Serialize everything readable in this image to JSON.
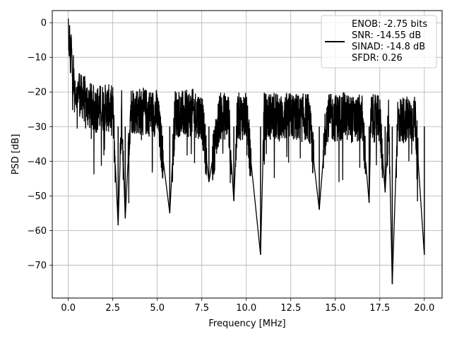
{
  "chart_data": {
    "type": "line",
    "title": "",
    "xlabel": "Frequency [MHz]",
    "ylabel": "PSD [dB]",
    "xlim": [
      -0.9,
      21.0
    ],
    "ylim": [
      -79.5,
      3.5
    ],
    "xticks": [
      0.0,
      2.5,
      5.0,
      7.5,
      10.0,
      12.5,
      15.0,
      17.5,
      20.0
    ],
    "xtick_labels": [
      "0.0",
      "2.5",
      "5.0",
      "7.5",
      "10.0",
      "12.5",
      "15.0",
      "17.5",
      "20.0"
    ],
    "yticks": [
      0,
      -10,
      -20,
      -30,
      -40,
      -50,
      -60,
      -70
    ],
    "ytick_labels": [
      "0",
      "−10",
      "−20",
      "−30",
      "−40",
      "−50",
      "−60",
      "−70"
    ],
    "grid": true,
    "legend_position": "top-right",
    "series": [
      {
        "color": "#000000",
        "legend_lines": [
          "ENOB: -2.75 bits",
          "SNR: -14.55 dB",
          "SINAD: -14.8 dB",
          "SFDR: 0.26"
        ],
        "x": [
          0.0,
          0.02,
          0.05,
          0.08,
          0.12,
          0.16,
          0.2,
          0.25,
          0.3,
          0.35,
          0.4,
          0.5,
          0.6,
          0.7,
          0.8,
          1.0,
          1.2,
          1.5,
          2.0,
          2.5,
          2.8,
          3.0,
          3.2,
          3.5,
          4.0,
          4.5,
          5.0,
          5.7,
          6.0,
          6.5,
          7.0,
          7.5,
          7.9,
          8.5,
          9.0,
          9.3,
          9.5,
          10.0,
          10.8,
          11.0,
          11.5,
          12.0,
          12.5,
          13.0,
          13.5,
          14.1,
          14.5,
          15.0,
          15.5,
          16.0,
          16.5,
          16.9,
          17.0,
          17.5,
          17.8,
          18.0,
          18.2,
          18.5,
          19.0,
          19.5,
          20.0
        ],
        "y": [
          0.0,
          -4.0,
          -12.0,
          -2.0,
          -15.0,
          -5.0,
          -10.0,
          -18.0,
          -11.0,
          -22.0,
          -20.0,
          -21.0,
          -19.0,
          -22.0,
          -21.0,
          -23.0,
          -24.0,
          -25.0,
          -24.5,
          -25.0,
          -58.5,
          -26.0,
          -56.5,
          -25.0,
          -25.5,
          -26.0,
          -26.0,
          -55.0,
          -26.0,
          -26.5,
          -26.0,
          -27.0,
          -46.0,
          -27.0,
          -27.0,
          -51.5,
          -27.0,
          -27.0,
          -67.0,
          -27.0,
          -27.0,
          -27.5,
          -27.0,
          -27.5,
          -27.0,
          -54.0,
          -27.5,
          -27.5,
          -27.0,
          -28.0,
          -27.5,
          -52.0,
          -27.5,
          -28.0,
          -49.0,
          -27.5,
          -75.5,
          -28.0,
          -28.0,
          -28.0,
          -67.0
        ]
      }
    ]
  }
}
